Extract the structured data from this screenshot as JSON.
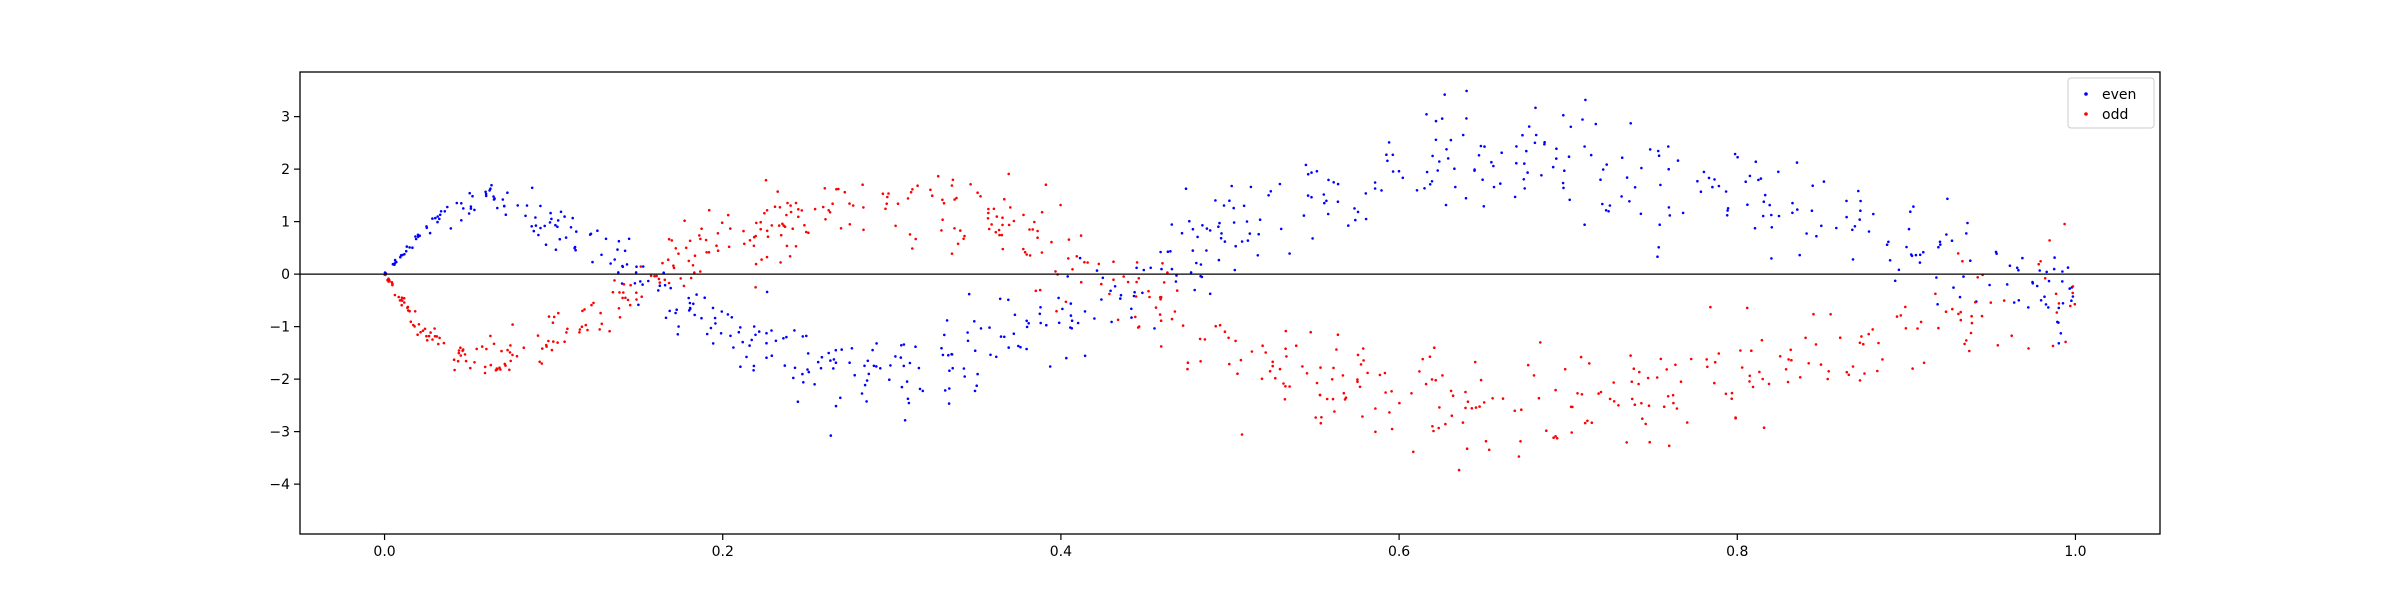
{
  "chart_data": {
    "type": "scatter",
    "xlim": [
      -0.05,
      1.05
    ],
    "ylim": [
      -4.95,
      3.85
    ],
    "xticks": [
      0.0,
      0.2,
      0.4,
      0.6,
      0.8,
      1.0
    ],
    "xtick_labels": [
      "0.0",
      "0.2",
      "0.4",
      "0.6",
      "0.8",
      "1.0"
    ],
    "yticks": [
      3,
      2,
      1,
      0,
      -1,
      -2,
      -3,
      -4
    ],
    "ytick_labels": [
      "3",
      "2",
      "1",
      "0",
      "−1",
      "−2",
      "−3",
      "−4"
    ],
    "hline_y": 0,
    "grid": false,
    "legend_position": "top-right",
    "series": [
      {
        "name": "even",
        "color": "#0000ff",
        "points_per_branch": 600,
        "curve": [
          [
            0.0,
            0.0
          ],
          [
            0.02,
            0.75
          ],
          [
            0.04,
            1.2
          ],
          [
            0.06,
            1.45
          ],
          [
            0.08,
            1.2
          ],
          [
            0.1,
            0.8
          ],
          [
            0.12,
            0.55
          ],
          [
            0.14,
            0.25
          ],
          [
            0.16,
            -0.25
          ],
          [
            0.18,
            -0.7
          ],
          [
            0.2,
            -1.1
          ],
          [
            0.23,
            -1.35
          ],
          [
            0.26,
            -1.85
          ],
          [
            0.3,
            -1.8
          ],
          [
            0.33,
            -1.6
          ],
          [
            0.36,
            -1.3
          ],
          [
            0.38,
            -1.05
          ],
          [
            0.4,
            -0.8
          ],
          [
            0.42,
            -0.6
          ],
          [
            0.44,
            -0.35
          ],
          [
            0.46,
            0.2
          ],
          [
            0.48,
            0.5
          ],
          [
            0.5,
            0.85
          ],
          [
            0.53,
            1.15
          ],
          [
            0.56,
            1.5
          ],
          [
            0.6,
            1.85
          ],
          [
            0.63,
            2.1
          ],
          [
            0.66,
            2.3
          ],
          [
            0.68,
            2.15
          ],
          [
            0.7,
            2.0
          ],
          [
            0.73,
            1.8
          ],
          [
            0.76,
            1.6
          ],
          [
            0.8,
            1.5
          ],
          [
            0.83,
            1.3
          ],
          [
            0.86,
            1.05
          ],
          [
            0.9,
            0.65
          ],
          [
            0.94,
            0.25
          ],
          [
            0.97,
            0.0
          ],
          [
            1.0,
            -0.3
          ]
        ],
        "noise": [
          [
            0.0,
            0.02
          ],
          [
            0.05,
            0.18
          ],
          [
            0.1,
            0.25
          ],
          [
            0.2,
            0.35
          ],
          [
            0.3,
            0.4
          ],
          [
            0.5,
            0.45
          ],
          [
            0.7,
            0.55
          ],
          [
            1.0,
            0.5
          ]
        ]
      },
      {
        "name": "odd",
        "color": "#ff0000",
        "points_per_branch": 600,
        "curve": [
          [
            0.0,
            0.0
          ],
          [
            0.02,
            -1.0
          ],
          [
            0.04,
            -1.4
          ],
          [
            0.06,
            -1.65
          ],
          [
            0.08,
            -1.55
          ],
          [
            0.1,
            -1.3
          ],
          [
            0.12,
            -0.95
          ],
          [
            0.14,
            -0.45
          ],
          [
            0.16,
            0.0
          ],
          [
            0.18,
            0.45
          ],
          [
            0.2,
            0.8
          ],
          [
            0.23,
            1.0
          ],
          [
            0.26,
            1.3
          ],
          [
            0.3,
            1.45
          ],
          [
            0.33,
            1.2
          ],
          [
            0.36,
            0.95
          ],
          [
            0.38,
            0.7
          ],
          [
            0.4,
            0.45
          ],
          [
            0.42,
            0.05
          ],
          [
            0.44,
            -0.3
          ],
          [
            0.46,
            -0.7
          ],
          [
            0.48,
            -1.1
          ],
          [
            0.5,
            -1.5
          ],
          [
            0.53,
            -1.8
          ],
          [
            0.56,
            -2.1
          ],
          [
            0.6,
            -2.35
          ],
          [
            0.63,
            -2.5
          ],
          [
            0.66,
            -2.6
          ],
          [
            0.68,
            -2.6
          ],
          [
            0.7,
            -2.5
          ],
          [
            0.73,
            -2.4
          ],
          [
            0.76,
            -2.3
          ],
          [
            0.8,
            -2.05
          ],
          [
            0.83,
            -1.75
          ],
          [
            0.86,
            -1.4
          ],
          [
            0.9,
            -1.0
          ],
          [
            0.94,
            -0.65
          ],
          [
            0.97,
            -0.35
          ],
          [
            1.0,
            -0.1
          ]
        ],
        "noise": [
          [
            0.0,
            0.02
          ],
          [
            0.05,
            0.18
          ],
          [
            0.1,
            0.25
          ],
          [
            0.2,
            0.35
          ],
          [
            0.3,
            0.4
          ],
          [
            0.5,
            0.45
          ],
          [
            0.7,
            0.55
          ],
          [
            1.0,
            0.5
          ]
        ]
      }
    ]
  }
}
